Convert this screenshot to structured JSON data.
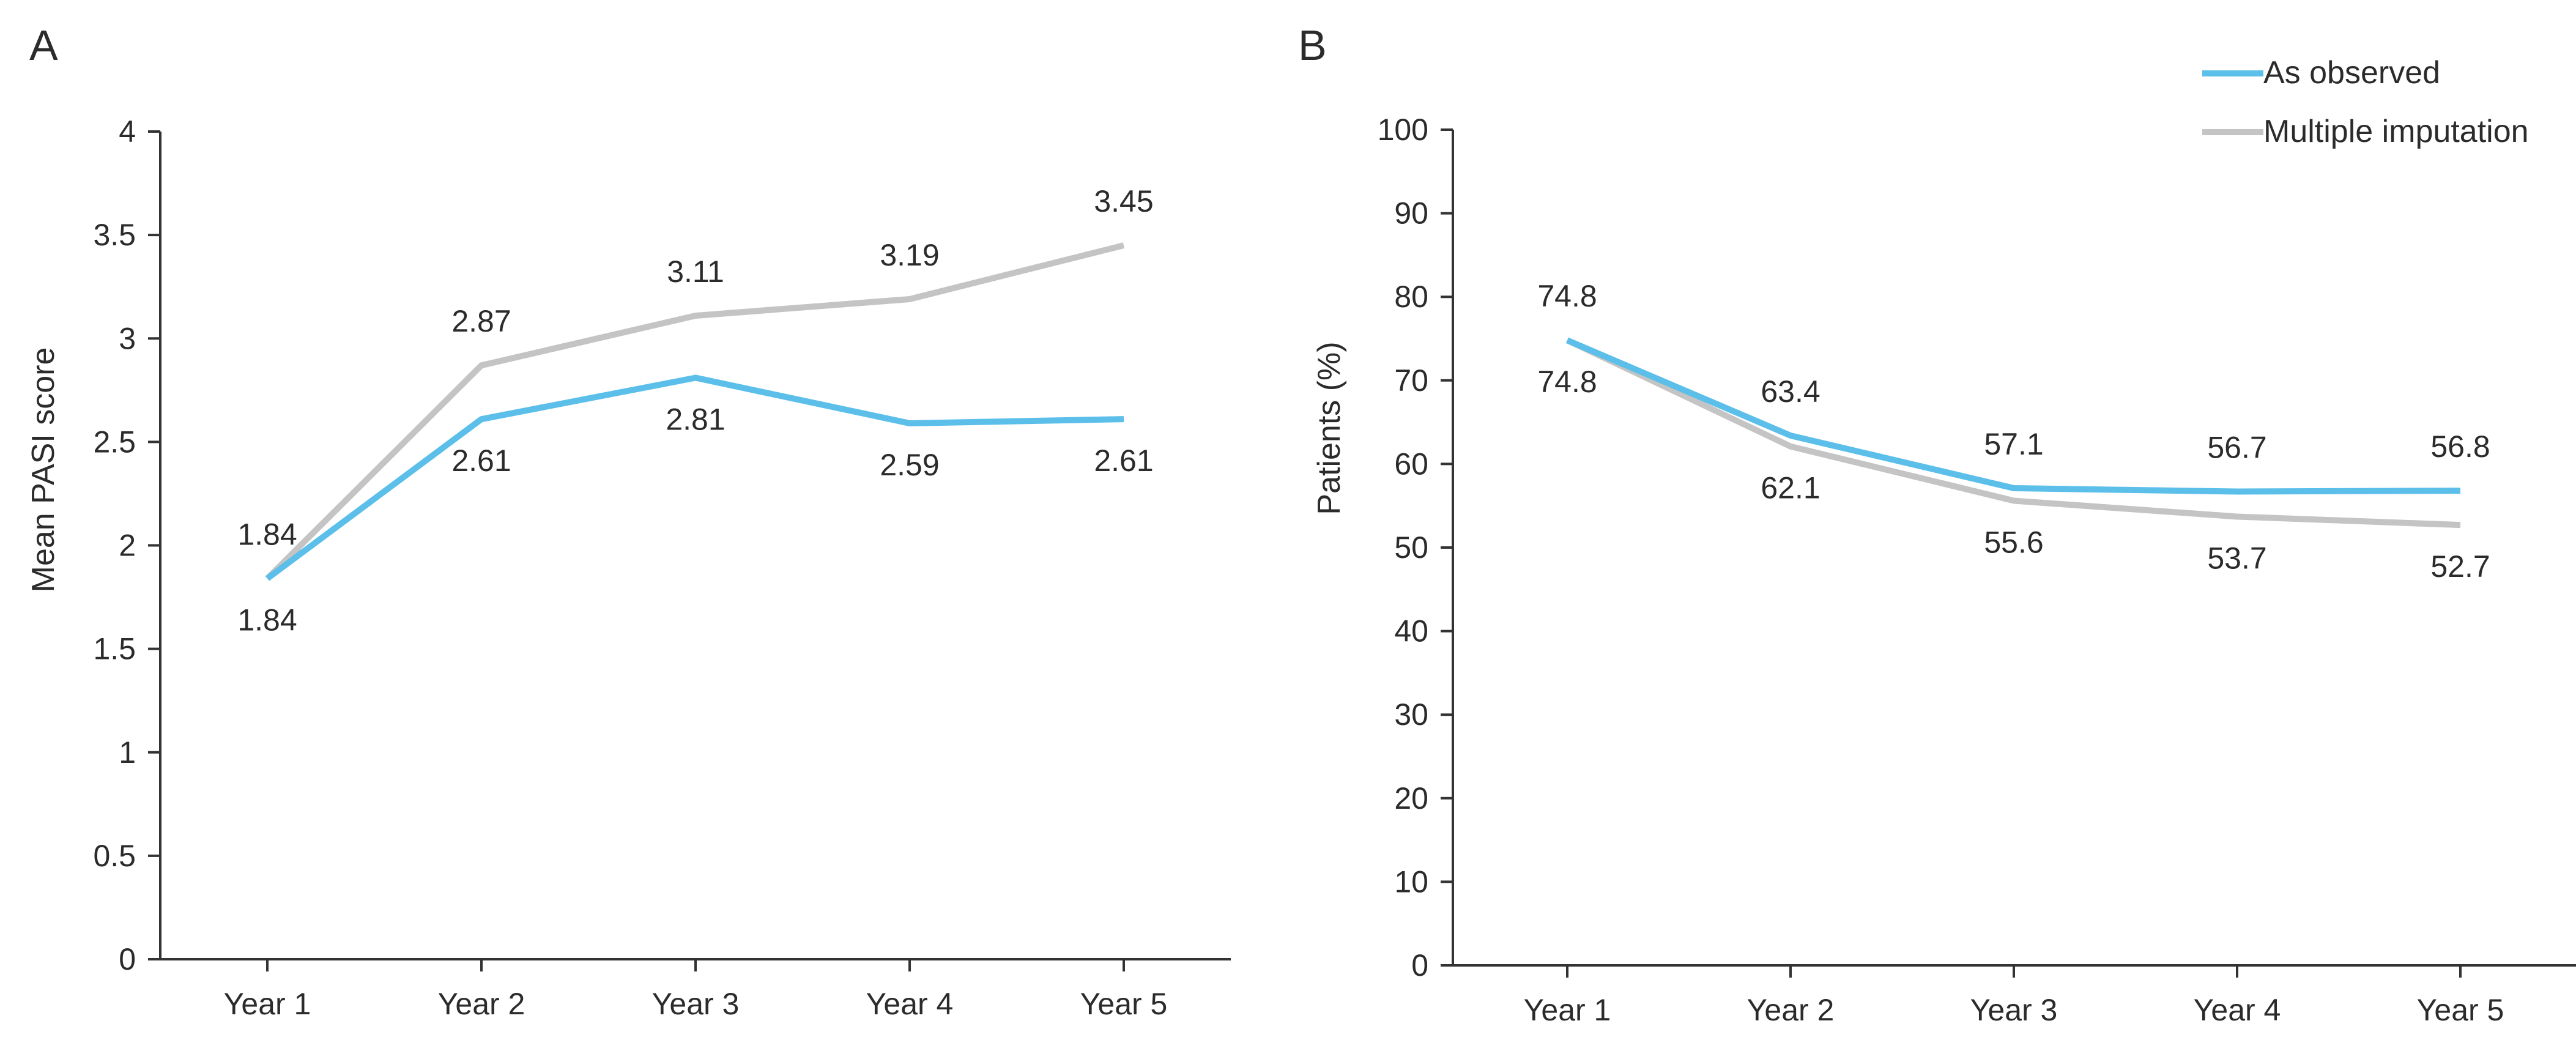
{
  "figure": {
    "legend": [
      {
        "name": "As observed",
        "color": "#5bbfea"
      },
      {
        "name": "Multiple imputation",
        "color": "#c4c4c4"
      }
    ]
  },
  "chart_data": [
    {
      "type": "line",
      "panel": "A",
      "categories": [
        "Year 1",
        "Year 2",
        "Year 3",
        "Year 4",
        "Year 5"
      ],
      "series": [
        {
          "name": "As observed",
          "color": "#5bbfea",
          "values": [
            1.84,
            2.61,
            2.81,
            2.59,
            2.61
          ]
        },
        {
          "name": "Multiple imputation",
          "color": "#c4c4c4",
          "values": [
            1.84,
            2.87,
            3.11,
            3.19,
            3.45
          ]
        }
      ],
      "ylabel": "Mean PASI score",
      "xlabel": "",
      "ylim": [
        0,
        4
      ],
      "yticks": [
        "0",
        "0.5",
        "1",
        "1.5",
        "2",
        "2.5",
        "3",
        "3.5",
        "4"
      ],
      "grid": false
    },
    {
      "type": "line",
      "panel": "B",
      "categories": [
        "Year 1",
        "Year 2",
        "Year 3",
        "Year 4",
        "Year 5"
      ],
      "series": [
        {
          "name": "As observed",
          "color": "#5bbfea",
          "values": [
            74.8,
            63.4,
            57.1,
            56.7,
            56.8
          ]
        },
        {
          "name": "Multiple imputation",
          "color": "#c4c4c4",
          "values": [
            74.8,
            62.1,
            55.6,
            53.7,
            52.7
          ]
        }
      ],
      "ylabel": "Patients (%)",
      "xlabel": "",
      "ylim": [
        0,
        100
      ],
      "yticks": [
        "0",
        "10",
        "20",
        "30",
        "40",
        "50",
        "60",
        "70",
        "80",
        "90",
        "100"
      ],
      "grid": false,
      "legend_position": "top-right"
    }
  ]
}
